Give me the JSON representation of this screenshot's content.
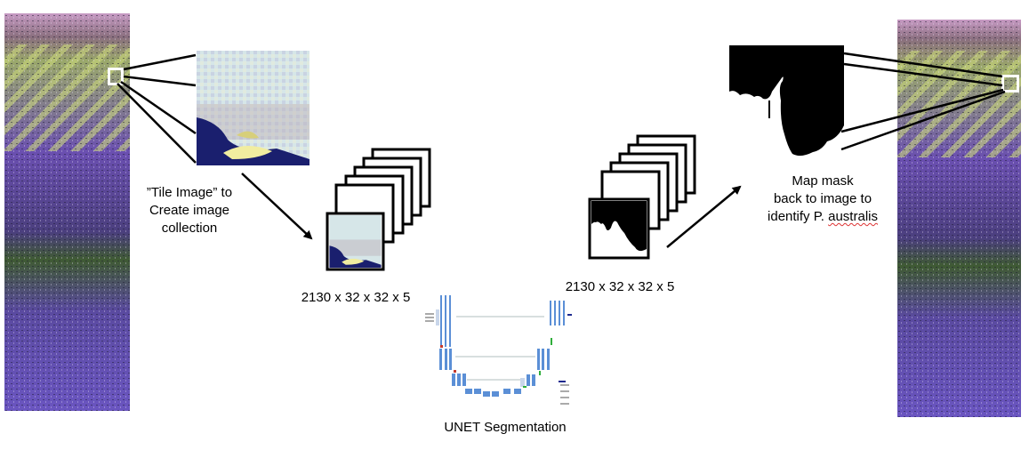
{
  "labels": {
    "tile_line1": "”Tile Image” to",
    "tile_line2": "Create image",
    "tile_line3": "collection",
    "dims_left": "2130 x 32 x 32 x 5",
    "dims_right": "2130 x 32 x 32 x 5",
    "unet": "UNET Segmentation",
    "map_line1": "Map mask",
    "map_line2": "back to image to",
    "map_line3_prefix": "identify P. ",
    "map_line3_word": "australis"
  },
  "colors": {
    "purple": "#6a4fb0",
    "dark_purple": "#2e2a50",
    "yellow_green": "#c9d77a",
    "pink": "#c79bc4",
    "tile_light": "#d6e6e8",
    "tile_navy": "#1a1f6e",
    "unet_blue": "#5b8fd6"
  }
}
